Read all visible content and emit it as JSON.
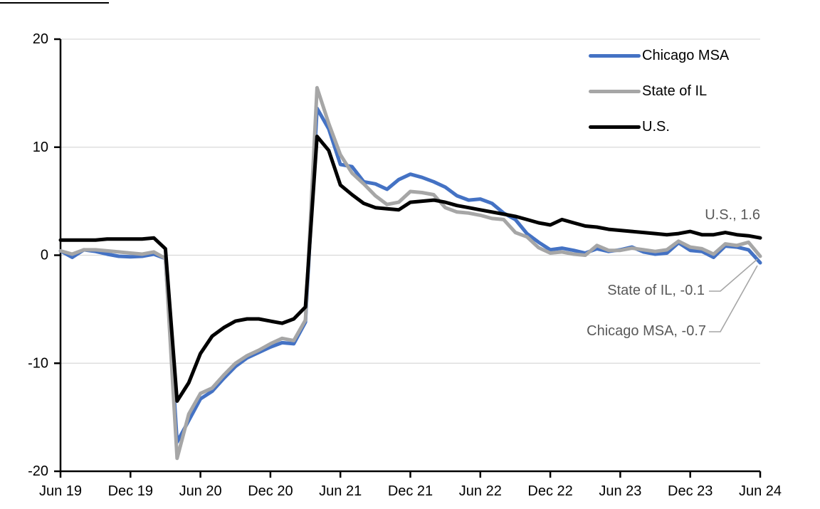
{
  "colors": {
    "background": "#FFFFFF",
    "axis": "#000000",
    "gridline": "#D9D9D9",
    "annotation_text": "#595959",
    "leader_line": "#A6A6A6"
  },
  "chart_data": {
    "type": "line",
    "title": "",
    "xlabel": "",
    "ylabel": "",
    "grid": "horizontal",
    "legend_position": "top-right",
    "ylim": [
      -20,
      20
    ],
    "yticks": [
      -20,
      -10,
      0,
      10,
      20
    ],
    "y_tick_labels": [
      "-20",
      "-10",
      "0",
      "10",
      "20"
    ],
    "x_tick_labels": [
      "Jun 19",
      "Dec 19",
      "Jun 20",
      "Dec 20",
      "Jun 21",
      "Dec 21",
      "Jun 22",
      "Dec 22",
      "Jun 23",
      "Dec 23",
      "Jun 24"
    ],
    "x": [
      "Jun 19",
      "Jul 19",
      "Aug 19",
      "Sep 19",
      "Oct 19",
      "Nov 19",
      "Dec 19",
      "Jan 20",
      "Feb 20",
      "Mar 20",
      "Apr 20",
      "May 20",
      "Jun 20",
      "Jul 20",
      "Aug 20",
      "Sep 20",
      "Oct 20",
      "Nov 20",
      "Dec 20",
      "Jan 21",
      "Feb 21",
      "Mar 21",
      "Apr 21",
      "May 21",
      "Jun 21",
      "Jul 21",
      "Aug 21",
      "Sep 21",
      "Oct 21",
      "Nov 21",
      "Dec 21",
      "Jan 22",
      "Feb 22",
      "Mar 22",
      "Apr 22",
      "May 22",
      "Jun 22",
      "Jul 22",
      "Aug 22",
      "Sep 22",
      "Oct 22",
      "Nov 22",
      "Dec 22",
      "Jan 23",
      "Feb 23",
      "Mar 23",
      "Apr 23",
      "May 23",
      "Jun 23",
      "Jul 23",
      "Aug 23",
      "Sep 23",
      "Oct 23",
      "Nov 23",
      "Dec 23",
      "Jan 24",
      "Feb 24",
      "Mar 24",
      "Apr 24",
      "May 24",
      "Jun 24"
    ],
    "series": [
      {
        "name": "Chicago MSA",
        "color": "#4472C4",
        "values": [
          0.4,
          -0.2,
          0.5,
          0.35,
          0.1,
          -0.1,
          -0.15,
          -0.1,
          0.1,
          -0.3,
          -17.3,
          -15.3,
          -13.3,
          -12.6,
          -11.4,
          -10.3,
          -9.5,
          -9.0,
          -8.5,
          -8.1,
          -8.2,
          -6.2,
          13.6,
          11.7,
          8.4,
          8.2,
          6.8,
          6.6,
          6.1,
          7.0,
          7.5,
          7.2,
          6.8,
          6.3,
          5.5,
          5.1,
          5.2,
          4.8,
          3.9,
          3.3,
          2.0,
          1.2,
          0.5,
          0.65,
          0.45,
          0.2,
          0.6,
          0.35,
          0.5,
          0.75,
          0.3,
          0.1,
          0.2,
          1.15,
          0.45,
          0.35,
          -0.2,
          0.85,
          0.75,
          0.5,
          -0.7
        ]
      },
      {
        "name": "State of IL",
        "color": "#A6A6A6",
        "values": [
          0.4,
          0.1,
          0.5,
          0.5,
          0.4,
          0.3,
          0.2,
          0.1,
          0.3,
          -0.3,
          -18.8,
          -14.7,
          -12.8,
          -12.3,
          -11.1,
          -10.0,
          -9.3,
          -8.8,
          -8.2,
          -7.7,
          -7.9,
          -6.0,
          15.5,
          12.2,
          9.3,
          7.6,
          6.6,
          5.5,
          4.7,
          4.9,
          5.9,
          5.8,
          5.6,
          4.4,
          4.0,
          3.9,
          3.7,
          3.4,
          3.3,
          2.1,
          1.7,
          0.7,
          0.2,
          0.3,
          0.1,
          0.0,
          0.9,
          0.45,
          0.45,
          0.65,
          0.5,
          0.35,
          0.5,
          1.3,
          0.75,
          0.6,
          0.1,
          1.05,
          0.9,
          1.2,
          -0.1
        ]
      },
      {
        "name": "U.S.",
        "color": "#000000",
        "values": [
          1.4,
          1.4,
          1.4,
          1.4,
          1.5,
          1.5,
          1.5,
          1.5,
          1.6,
          0.6,
          -13.5,
          -11.8,
          -9.1,
          -7.5,
          -6.7,
          -6.1,
          -5.9,
          -5.9,
          -6.1,
          -6.3,
          -5.9,
          -4.8,
          11.0,
          9.7,
          6.5,
          5.6,
          4.8,
          4.4,
          4.3,
          4.2,
          4.9,
          5.0,
          5.1,
          4.9,
          4.6,
          4.4,
          4.2,
          4.0,
          3.8,
          3.6,
          3.3,
          3.0,
          2.8,
          3.3,
          3.0,
          2.7,
          2.6,
          2.4,
          2.3,
          2.2,
          2.1,
          2.0,
          1.9,
          2.0,
          2.2,
          1.9,
          1.9,
          2.1,
          1.9,
          1.8,
          1.6
        ]
      }
    ],
    "annotations": [
      {
        "label": "U.S., 1.6",
        "series": "U.S.",
        "value": 1.6,
        "leader": false
      },
      {
        "label": "State of IL, -0.1",
        "series": "State of IL",
        "value": -0.1,
        "leader": true
      },
      {
        "label": "Chicago MSA, -0.7",
        "series": "Chicago MSA",
        "value": -0.7,
        "leader": true
      }
    ]
  }
}
